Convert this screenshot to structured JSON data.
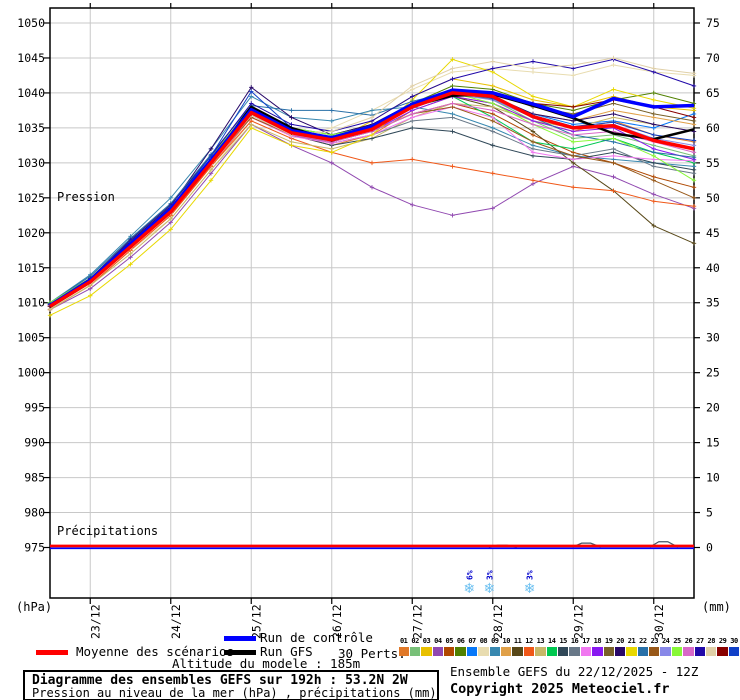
{
  "chart_data": {
    "type": "line",
    "title": "Diagramme des ensembles GEFS sur 192h : 53.2N 2W",
    "subtitle": "Pression au niveau de la mer (hPa) , précipitations (mm)",
    "grid": true,
    "x_axis": {
      "range_hours": [
        0,
        192
      ],
      "tick_hours": [
        12,
        36,
        60,
        84,
        108,
        132,
        156,
        180
      ],
      "tick_labels": [
        "23/12",
        "24/12",
        "25/12",
        "26/12",
        "27/12",
        "28/12",
        "29/12",
        "30/12"
      ]
    },
    "y_left": {
      "unit": "(hPa)",
      "min": 975,
      "max": 1050,
      "step": 5,
      "inline_label": "Pression"
    },
    "y_right": {
      "unit": "(mm)",
      "min": 0,
      "max": 75,
      "step": 5,
      "inline_label": "Précipitations"
    },
    "time_points_hours": [
      0,
      12,
      24,
      36,
      48,
      60,
      72,
      84,
      96,
      108,
      120,
      132,
      144,
      156,
      168,
      180,
      192
    ],
    "main_series": [
      {
        "name": "Run GFS",
        "color": "#000000",
        "width": 2.5,
        "values": [
          1009.4,
          1013,
          1018.2,
          1023.2,
          1030.2,
          1038,
          1035,
          1033.2,
          1035,
          1038.2,
          1039.6,
          1039.8,
          1038.2,
          1036.4,
          1034.2,
          1033.4,
          1034.8
        ]
      },
      {
        "name": "Run de contrôle",
        "color": "#0000ff",
        "width": 3.5,
        "values": [
          1009.6,
          1013.2,
          1018.4,
          1023.4,
          1030.4,
          1037.6,
          1034.6,
          1033.6,
          1035.2,
          1038.4,
          1040.4,
          1040,
          1038.4,
          1036.6,
          1039.2,
          1038,
          1038.2
        ]
      },
      {
        "name": "Moyenne des scénarios",
        "color": "#ff0000",
        "width": 3.5,
        "values": [
          1009.5,
          1013,
          1018,
          1023,
          1030,
          1037.2,
          1034.3,
          1033.3,
          1034.8,
          1038,
          1040,
          1039.5,
          1036.6,
          1035,
          1035.3,
          1033.2,
          1032
        ]
      }
    ],
    "members": [
      {
        "name": "01",
        "color": "#e07828",
        "values": [
          1009,
          1012.5,
          1017.5,
          1022.5,
          1029.5,
          1036.5,
          1034,
          1032.5,
          1034,
          1037.5,
          1039.5,
          1038.5,
          1036,
          1034.5,
          1036,
          1034,
          1033
        ]
      },
      {
        "name": "02",
        "color": "#78c078",
        "values": [
          1010,
          1013.5,
          1018.5,
          1023.5,
          1030.5,
          1037.5,
          1034.5,
          1033.5,
          1035,
          1038.5,
          1040.5,
          1039,
          1036,
          1033.5,
          1034,
          1032.5,
          1031
        ]
      },
      {
        "name": "03",
        "color": "#e8c000",
        "values": [
          1009.5,
          1013,
          1018,
          1023,
          1030,
          1037,
          1034,
          1033,
          1036,
          1039.5,
          1042,
          1041,
          1039,
          1038,
          1039.5,
          1038,
          1037.5
        ]
      },
      {
        "name": "04",
        "color": "#9048b0",
        "values": [
          1009,
          1012,
          1016.5,
          1021.5,
          1028.5,
          1035.5,
          1032.5,
          1030,
          1026.5,
          1024,
          1022.5,
          1023.5,
          1027,
          1029.5,
          1028,
          1025.5,
          1023.5
        ]
      },
      {
        "name": "05",
        "color": "#b04800",
        "values": [
          1009.5,
          1013,
          1018,
          1023,
          1030,
          1036.8,
          1034,
          1033,
          1034.5,
          1037,
          1038.5,
          1037,
          1034,
          1031.5,
          1030,
          1028,
          1026.5
        ]
      },
      {
        "name": "06",
        "color": "#508000",
        "values": [
          1010,
          1013.5,
          1019,
          1024,
          1031,
          1037.8,
          1035,
          1034,
          1035.5,
          1038.5,
          1041,
          1040.5,
          1038.5,
          1037.5,
          1039,
          1040,
          1038.5
        ]
      },
      {
        "name": "07",
        "color": "#0878f8",
        "values": [
          1009.5,
          1013,
          1018.5,
          1023.5,
          1030.5,
          1037.5,
          1034.5,
          1033.5,
          1035,
          1038,
          1040,
          1039.5,
          1037,
          1035.5,
          1036,
          1035,
          1037
        ]
      },
      {
        "name": "08",
        "color": "#e8dcb0",
        "values": [
          1009,
          1012.5,
          1017.5,
          1022,
          1029,
          1036,
          1033.5,
          1035,
          1037.5,
          1040.5,
          1043,
          1043.5,
          1043,
          1042.5,
          1044,
          1043,
          1042.5
        ]
      },
      {
        "name": "09",
        "color": "#3888b0",
        "values": [
          1010,
          1014,
          1019.5,
          1025,
          1032,
          1039.5,
          1036.5,
          1036,
          1037.5,
          1038,
          1037,
          1035,
          1032.5,
          1031,
          1030.5,
          1030,
          1029.5
        ]
      },
      {
        "name": "10",
        "color": "#e0a048",
        "values": [
          1009.5,
          1013,
          1018,
          1023,
          1030,
          1037,
          1034.5,
          1033.5,
          1035,
          1038,
          1040,
          1039,
          1037,
          1036,
          1037.5,
          1036.5,
          1035.5
        ]
      },
      {
        "name": "11",
        "color": "#584818",
        "values": [
          1009.5,
          1013,
          1018,
          1023.5,
          1030.5,
          1037.5,
          1034.5,
          1033.5,
          1035,
          1038,
          1039.5,
          1038,
          1034.5,
          1030,
          1026,
          1021,
          1018.5
        ]
      },
      {
        "name": "12",
        "color": "#f05818",
        "values": [
          1009,
          1012.5,
          1017.5,
          1022.5,
          1029.5,
          1036,
          1033.5,
          1031.5,
          1030,
          1030.5,
          1029.5,
          1028.5,
          1027.5,
          1026.5,
          1026,
          1024.5,
          1023.8
        ]
      },
      {
        "name": "13",
        "color": "#c8b868",
        "values": [
          1009,
          1012.5,
          1017,
          1022,
          1029,
          1035.5,
          1033,
          1032,
          1033.5,
          1036.5,
          1038.5,
          1038,
          1036,
          1035,
          1036.5,
          1035.5,
          1034.5
        ]
      },
      {
        "name": "14",
        "color": "#00c850",
        "values": [
          1010,
          1013.5,
          1019,
          1024,
          1031,
          1037.5,
          1034.5,
          1033.5,
          1035,
          1038,
          1039.5,
          1036.5,
          1033,
          1032,
          1033.5,
          1031.5,
          1030
        ]
      },
      {
        "name": "15",
        "color": "#304858",
        "values": [
          1009.5,
          1013,
          1018.5,
          1023.5,
          1030.5,
          1037.2,
          1034,
          1032.5,
          1033.5,
          1035,
          1034.5,
          1032.5,
          1031,
          1030.5,
          1031.5,
          1030,
          1029
        ]
      },
      {
        "name": "16",
        "color": "#687888",
        "values": [
          1009.5,
          1013,
          1018,
          1023,
          1030,
          1036.8,
          1034,
          1032.8,
          1034,
          1036,
          1036.5,
          1034.5,
          1032,
          1031,
          1032,
          1029.5,
          1028.5
        ]
      },
      {
        "name": "17",
        "color": "#f078f0",
        "values": [
          1009.5,
          1013,
          1018,
          1023,
          1029.8,
          1036.5,
          1033.8,
          1032.8,
          1034,
          1036.5,
          1038,
          1036.5,
          1031.5,
          1030.5,
          1031,
          1030.5,
          1030.3
        ]
      },
      {
        "name": "18",
        "color": "#8818f0",
        "values": [
          1009.5,
          1013.2,
          1018.2,
          1023.2,
          1030.2,
          1037,
          1034,
          1033,
          1034.5,
          1037.5,
          1039.5,
          1038.5,
          1036,
          1034.5,
          1035,
          1032,
          1030.5
        ]
      },
      {
        "name": "19",
        "color": "#786028",
        "values": [
          1009.5,
          1013,
          1018,
          1023,
          1030,
          1037,
          1034.2,
          1033.2,
          1035,
          1038.5,
          1040.5,
          1040,
          1038,
          1037,
          1038.5,
          1037,
          1036
        ]
      },
      {
        "name": "20",
        "color": "#280868",
        "values": [
          1009.8,
          1013.4,
          1018.8,
          1023.8,
          1032,
          1040.8,
          1036.5,
          1034,
          1035.5,
          1038.5,
          1040.5,
          1039.5,
          1037,
          1036,
          1037,
          1035.5,
          1034.5
        ]
      },
      {
        "name": "21",
        "color": "#e8d800",
        "values": [
          1008.2,
          1011,
          1015.5,
          1020.5,
          1027.5,
          1035,
          1032.5,
          1031.5,
          1034,
          1039,
          1044.8,
          1043,
          1039.5,
          1038,
          1040.5,
          1039,
          1037.8
        ]
      },
      {
        "name": "22",
        "color": "#2870a8",
        "values": [
          1010,
          1013.8,
          1019.2,
          1024.2,
          1031.2,
          1038.2,
          1037.5,
          1037.5,
          1036.8,
          1038.8,
          1040.2,
          1039,
          1036.5,
          1034,
          1033,
          1031.5,
          1030.8
        ]
      },
      {
        "name": "23",
        "color": "#985818",
        "values": [
          1009.5,
          1013,
          1018,
          1023,
          1030,
          1036.5,
          1034,
          1033,
          1034.5,
          1037,
          1038,
          1036,
          1033,
          1031,
          1030,
          1027.5,
          1025
        ]
      },
      {
        "name": "24",
        "color": "#8888e8",
        "values": [
          1009.5,
          1013,
          1018.2,
          1023.2,
          1030.2,
          1037.2,
          1034.2,
          1033.2,
          1034.8,
          1037.8,
          1039.8,
          1039,
          1036.5,
          1035,
          1035.5,
          1033.5,
          1032.5
        ]
      },
      {
        "name": "25",
        "color": "#88f838",
        "values": [
          1010,
          1013.5,
          1019,
          1024,
          1031,
          1037.8,
          1035,
          1034,
          1035.2,
          1038.2,
          1040,
          1038.5,
          1035.5,
          1033,
          1033.5,
          1031,
          1027.5
        ]
      },
      {
        "name": "26",
        "color": "#d868c8",
        "values": [
          1009.5,
          1013,
          1018,
          1023,
          1030,
          1036.8,
          1034,
          1033,
          1034.5,
          1037,
          1038.5,
          1037.5,
          1035.5,
          1034,
          1034.5,
          1033,
          1031.5
        ]
      },
      {
        "name": "27",
        "color": "#2008a8",
        "values": [
          1009.8,
          1013.5,
          1019,
          1024,
          1031,
          1038.5,
          1035.5,
          1034.5,
          1036,
          1039.5,
          1042,
          1043.5,
          1044.5,
          1043.5,
          1044.8,
          1043,
          1041
        ]
      },
      {
        "name": "28",
        "color": "#e0d0a8",
        "values": [
          1009.2,
          1012.8,
          1017.8,
          1022.8,
          1029.8,
          1036.8,
          1034,
          1034.5,
          1036.5,
          1041,
          1043.5,
          1044.5,
          1043.5,
          1044,
          1045,
          1043.5,
          1042.8
        ]
      },
      {
        "name": "29",
        "color": "#880000",
        "values": [
          1009.5,
          1013,
          1018,
          1023,
          1030,
          1037,
          1034.3,
          1033.3,
          1034.8,
          1038,
          1040,
          1039.8,
          1038.5,
          1038,
          1039,
          1038,
          1036.5
        ]
      },
      {
        "name": "30",
        "color": "#1040c8",
        "values": [
          1009.7,
          1013.2,
          1018.6,
          1023.6,
          1031,
          1040.2,
          1035,
          1033.6,
          1035.2,
          1038.2,
          1040.2,
          1039.2,
          1036.8,
          1035.2,
          1035.8,
          1034,
          1033.2
        ]
      }
    ],
    "precipitation": {
      "label": "Précipitations",
      "mean_mm": 0.15,
      "control_mm": 0.1,
      "events": [
        {
          "hour": 135,
          "mm": 0.25
        },
        {
          "hour": 160,
          "mm": 0.55
        },
        {
          "hour": 183,
          "mm": 0.75
        }
      ]
    },
    "snow_markers": [
      {
        "hour": 125,
        "label": "6%"
      },
      {
        "hour": 131,
        "label": "3%"
      },
      {
        "hour": 143,
        "label": "3%"
      }
    ],
    "colors": {
      "grid": "#c8c8c8",
      "axis": "#000000",
      "snowflake": "#6cc0f0",
      "snow_label": "#0000cd"
    }
  },
  "legend": {
    "mean_label": "Moyenne des scénarios",
    "control_label": "Run de contrôle",
    "gfs_label": "Run GFS",
    "perts_label": "30 Perts.",
    "altitude_label": "Altitude du modele : 185m",
    "mean_color": "#ff0000",
    "control_color": "#0000ff",
    "gfs_color": "#000000"
  },
  "footer": {
    "title": "Diagramme des ensembles GEFS sur 192h : 53.2N 2W",
    "subtitle": "Pression au niveau de la mer (hPa) , précipitations (mm)",
    "run_info": "Ensemble GEFS du 22/12/2025 - 12Z",
    "copyright": "Copyright 2025 Meteociel.fr"
  },
  "units": {
    "left": "(hPa)",
    "right": "(mm)"
  }
}
